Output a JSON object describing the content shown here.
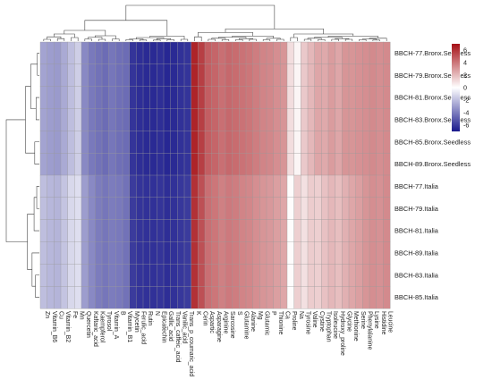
{
  "chart_data": {
    "type": "heatmap",
    "title": "",
    "xlabel": "",
    "ylabel": "",
    "color_scale": {
      "min": -7,
      "max": 7,
      "ticks": [
        "6",
        "4",
        "2",
        "0",
        "-2",
        "-4",
        "-6"
      ],
      "low_color": "#1a1a8c",
      "mid_color": "#ffffff",
      "high_color": "#a50f15"
    },
    "legend_placement": "top-right",
    "grid": true,
    "dendrograms": [
      "rows-left",
      "columns-top"
    ],
    "rows": [
      "BBCH-77.Bronx.Seedless",
      "BBCH-79.Bronx.Seedless",
      "BBCH-81.Bronx.Seedless",
      "BBCH-83.Bronx.Seedless",
      "BBCH-85.Bronx.Seedless",
      "BBCH-89.Bronx.Seedless",
      "BBCH-77.Italia",
      "BBCH-79.Italia",
      "BBCH-81.Italia",
      "BBCH-89.Italia",
      "BBCH-83.Italia",
      "BBCH-85.Italia"
    ],
    "columns": [
      "Zn",
      "Vitamin_B6",
      "Cu",
      "Vitamin_B2",
      "Fe",
      "Mn",
      "Quercetin",
      "Kaftaric_acid",
      "Kaempferol",
      "Tyrosol",
      "Vitamin_A",
      "B",
      "Vitamin_B1",
      "Mycetin",
      "Ferulic_acid",
      "Rutin",
      "N",
      "Epicatechin",
      "Gallic_acid",
      "Trans_caffeic_acid",
      "Vanilic_acid",
      "Trans_p_coumaric_acid",
      "K",
      "Cerin",
      "Aspartic",
      "Asparagine",
      "Arginine",
      "Sarcosine",
      "S",
      "Glutamine",
      "Alanine",
      "Mg",
      "Glutamic",
      "P",
      "Thionine",
      "Ca",
      "Proline",
      "Na",
      "Tyrosine",
      "Valine",
      "Cystine",
      "Tryptophan",
      "Isoleucine",
      "Hydroxy_proline",
      "Glycine",
      "Methionine",
      "Serine",
      "Phenylalanine",
      "Lysine",
      "Histidine",
      "Leucine"
    ],
    "values": [
      [
        -2.8,
        -3.0,
        -3.1,
        -2.6,
        -2.0,
        -1.5,
        -3.6,
        -4.1,
        -4.3,
        -4.5,
        -4.2,
        -4.4,
        -4.5,
        -6.2,
        -6.4,
        -6.5,
        -6.5,
        -6.4,
        -6.6,
        -6.5,
        -6.3,
        -6.2,
        6.4,
        5.6,
        4.7,
        4.5,
        4.2,
        4.4,
        4.3,
        4.1,
        4.0,
        3.8,
        3.6,
        3.5,
        3.3,
        3.1,
        1.0,
        0.3,
        1.6,
        2.1,
        2.6,
        2.5,
        2.9,
        2.6,
        3.1,
        3.1,
        3.2,
        3.3,
        3.4,
        3.3,
        3.4
      ],
      [
        -2.8,
        -3.0,
        -3.1,
        -2.6,
        -2.0,
        -1.5,
        -3.6,
        -4.1,
        -4.3,
        -4.5,
        -4.2,
        -4.4,
        -4.5,
        -6.2,
        -6.4,
        -6.5,
        -6.5,
        -6.4,
        -6.6,
        -6.5,
        -6.3,
        -6.2,
        6.4,
        5.6,
        4.7,
        4.5,
        4.2,
        4.4,
        4.3,
        4.1,
        4.0,
        3.8,
        3.6,
        3.5,
        3.3,
        3.1,
        1.0,
        0.3,
        1.6,
        2.1,
        2.6,
        2.5,
        2.9,
        2.6,
        3.1,
        3.1,
        3.2,
        3.3,
        3.4,
        3.3,
        3.4
      ],
      [
        -2.8,
        -3.0,
        -3.1,
        -2.6,
        -2.0,
        -1.5,
        -3.6,
        -4.1,
        -4.3,
        -4.5,
        -4.2,
        -4.4,
        -4.5,
        -6.2,
        -6.4,
        -6.5,
        -6.5,
        -6.4,
        -6.6,
        -6.5,
        -6.3,
        -6.2,
        6.4,
        5.6,
        4.7,
        4.5,
        4.2,
        4.4,
        4.3,
        4.1,
        4.0,
        3.8,
        3.6,
        3.5,
        3.3,
        3.1,
        1.0,
        0.3,
        1.6,
        2.1,
        2.6,
        2.5,
        2.9,
        2.6,
        3.1,
        3.1,
        3.2,
        3.3,
        3.4,
        3.3,
        3.4
      ],
      [
        -2.8,
        -3.0,
        -3.1,
        -2.6,
        -2.0,
        -1.5,
        -3.6,
        -4.1,
        -4.3,
        -4.5,
        -4.2,
        -4.4,
        -4.5,
        -6.2,
        -6.4,
        -6.5,
        -6.5,
        -6.4,
        -6.6,
        -6.5,
        -6.3,
        -6.2,
        6.4,
        5.6,
        4.7,
        4.5,
        4.2,
        4.4,
        4.3,
        4.1,
        4.0,
        3.8,
        3.6,
        3.5,
        3.3,
        3.1,
        1.0,
        0.3,
        1.6,
        2.1,
        2.6,
        2.5,
        2.9,
        2.6,
        3.1,
        3.1,
        3.2,
        3.3,
        3.4,
        3.3,
        3.4
      ],
      [
        -2.8,
        -3.0,
        -3.1,
        -2.6,
        -2.0,
        -1.5,
        -3.6,
        -4.1,
        -4.3,
        -4.5,
        -4.2,
        -4.4,
        -4.5,
        -6.2,
        -6.4,
        -6.5,
        -6.5,
        -6.4,
        -6.6,
        -6.5,
        -6.3,
        -6.2,
        6.4,
        5.6,
        4.7,
        4.5,
        4.2,
        4.4,
        4.3,
        4.1,
        4.0,
        3.8,
        3.6,
        3.5,
        3.3,
        3.1,
        1.0,
        0.3,
        1.6,
        2.1,
        2.6,
        2.5,
        2.9,
        2.6,
        3.1,
        3.1,
        3.2,
        3.3,
        3.4,
        3.3,
        3.4
      ],
      [
        -2.8,
        -3.0,
        -3.1,
        -2.6,
        -2.0,
        -1.5,
        -3.6,
        -4.1,
        -4.3,
        -4.5,
        -4.2,
        -4.4,
        -4.5,
        -6.2,
        -6.4,
        -6.5,
        -6.5,
        -6.4,
        -6.6,
        -6.5,
        -6.3,
        -6.2,
        6.4,
        5.6,
        4.7,
        4.5,
        4.2,
        4.4,
        4.3,
        4.1,
        4.0,
        3.8,
        3.6,
        3.5,
        3.3,
        3.1,
        1.0,
        0.3,
        1.6,
        2.1,
        2.6,
        2.5,
        2.9,
        2.6,
        3.1,
        3.1,
        3.2,
        3.3,
        3.4,
        3.3,
        3.4
      ],
      [
        -2.0,
        -2.2,
        -2.3,
        -1.8,
        -1.2,
        -1.0,
        -3.0,
        -3.6,
        -4.0,
        -4.2,
        -4.0,
        -4.1,
        -4.3,
        -6.0,
        -6.2,
        -6.3,
        -6.3,
        -6.2,
        -6.4,
        -6.3,
        -6.1,
        -6.0,
        6.0,
        5.1,
        4.2,
        4.0,
        3.7,
        3.9,
        3.8,
        3.6,
        3.5,
        3.3,
        3.1,
        3.0,
        2.8,
        2.6,
        0.1,
        1.4,
        0.9,
        1.5,
        1.4,
        1.8,
        2.1,
        1.9,
        2.3,
        2.6,
        2.8,
        3.1,
        3.3,
        3.2,
        3.4
      ],
      [
        -2.0,
        -2.2,
        -2.3,
        -1.8,
        -1.2,
        -1.0,
        -3.0,
        -3.6,
        -4.0,
        -4.2,
        -4.0,
        -4.1,
        -4.3,
        -6.0,
        -6.2,
        -6.3,
        -6.3,
        -6.2,
        -6.4,
        -6.3,
        -6.1,
        -6.0,
        6.0,
        5.1,
        4.2,
        4.0,
        3.7,
        3.9,
        3.8,
        3.6,
        3.5,
        3.3,
        3.1,
        3.0,
        2.8,
        2.6,
        0.1,
        1.4,
        0.9,
        1.5,
        1.4,
        1.8,
        2.1,
        1.9,
        2.3,
        2.6,
        2.8,
        3.1,
        3.3,
        3.2,
        3.4
      ],
      [
        -2.0,
        -2.2,
        -2.3,
        -1.8,
        -1.2,
        -1.0,
        -3.0,
        -3.6,
        -4.0,
        -4.2,
        -4.0,
        -4.1,
        -4.3,
        -6.0,
        -6.2,
        -6.3,
        -6.3,
        -6.2,
        -6.4,
        -6.3,
        -6.1,
        -6.0,
        6.0,
        5.1,
        4.2,
        4.0,
        3.7,
        3.9,
        3.8,
        3.6,
        3.5,
        3.3,
        3.1,
        3.0,
        2.8,
        2.6,
        0.1,
        1.4,
        0.9,
        1.5,
        1.4,
        1.8,
        2.1,
        1.9,
        2.3,
        2.6,
        2.8,
        3.1,
        3.3,
        3.2,
        3.4
      ],
      [
        -2.0,
        -2.2,
        -2.3,
        -1.8,
        -1.2,
        -1.0,
        -3.0,
        -3.6,
        -4.0,
        -4.2,
        -4.0,
        -4.1,
        -4.3,
        -6.0,
        -6.2,
        -6.3,
        -6.3,
        -6.2,
        -6.4,
        -6.3,
        -6.1,
        -6.0,
        6.0,
        5.1,
        4.2,
        4.0,
        3.7,
        3.9,
        3.8,
        3.6,
        3.5,
        3.3,
        3.1,
        3.0,
        2.8,
        2.6,
        0.1,
        1.4,
        0.9,
        1.5,
        1.4,
        1.8,
        2.1,
        1.9,
        2.3,
        2.6,
        2.8,
        3.1,
        3.3,
        3.2,
        3.4
      ],
      [
        -2.0,
        -2.2,
        -2.3,
        -1.8,
        -1.2,
        -1.0,
        -3.0,
        -3.6,
        -4.0,
        -4.2,
        -4.0,
        -4.1,
        -4.3,
        -6.0,
        -6.2,
        -6.3,
        -6.3,
        -6.2,
        -6.4,
        -6.3,
        -6.1,
        -6.0,
        6.0,
        5.1,
        4.2,
        4.0,
        3.7,
        3.9,
        3.8,
        3.6,
        3.5,
        3.3,
        3.1,
        3.0,
        2.8,
        2.6,
        0.1,
        1.4,
        0.9,
        1.5,
        1.4,
        1.8,
        2.1,
        1.9,
        2.3,
        2.6,
        2.8,
        3.1,
        3.3,
        3.2,
        3.4
      ],
      [
        -2.0,
        -2.2,
        -2.3,
        -1.8,
        -1.2,
        -1.0,
        -3.0,
        -3.6,
        -4.0,
        -4.2,
        -4.0,
        -4.1,
        -4.3,
        -6.0,
        -6.2,
        -6.3,
        -6.3,
        -6.2,
        -6.4,
        -6.3,
        -6.1,
        -6.0,
        6.0,
        5.1,
        4.2,
        4.0,
        3.7,
        3.9,
        3.8,
        3.6,
        3.5,
        3.3,
        3.1,
        3.0,
        2.8,
        2.6,
        0.1,
        1.4,
        0.9,
        1.5,
        1.4,
        1.8,
        2.1,
        1.9,
        2.3,
        2.6,
        2.8,
        3.1,
        3.3,
        3.2,
        3.4
      ]
    ],
    "row_dendrogram": {
      "order": [
        0,
        1,
        2,
        3,
        4,
        5,
        6,
        7,
        8,
        9,
        10,
        11
      ],
      "merges": [
        [
          0,
          1,
          0.06
        ],
        [
          2,
          3,
          0.1
        ],
        [
          4,
          5,
          0.14
        ],
        [
          12,
          13,
          0.26
        ],
        [
          14,
          15,
          0.42
        ],
        [
          6,
          7,
          0.08
        ],
        [
          10,
          11,
          0.12
        ],
        [
          8,
          17,
          0.16
        ],
        [
          9,
          18,
          0.22
        ],
        [
          19,
          20,
          0.36
        ],
        [
          16,
          21,
          1.0
        ]
      ]
    },
    "column_dendrogram": {
      "order": [
        0,
        1,
        2,
        3,
        4,
        5,
        6,
        7,
        8,
        9,
        10,
        11,
        12,
        13,
        14,
        15,
        16,
        17,
        18,
        19,
        20,
        21,
        22,
        23,
        24,
        25,
        26,
        27,
        28,
        29,
        30,
        31,
        32,
        33,
        34,
        35,
        36,
        37,
        38,
        39,
        40,
        41,
        42,
        43,
        44,
        45,
        46,
        47,
        48,
        49,
        50
      ],
      "merges": [
        [
          0,
          1,
          0.05
        ],
        [
          2,
          3,
          0.07
        ],
        [
          51,
          52,
          0.12
        ],
        [
          4,
          5,
          0.1
        ],
        [
          53,
          54,
          0.2
        ],
        [
          6,
          7,
          0.06
        ],
        [
          8,
          9,
          0.05
        ],
        [
          56,
          57,
          0.11
        ],
        [
          10,
          11,
          0.06
        ],
        [
          58,
          59,
          0.15
        ],
        [
          55,
          60,
          0.3
        ],
        [
          12,
          13,
          0.04
        ],
        [
          14,
          15,
          0.03
        ],
        [
          62,
          63,
          0.06
        ],
        [
          16,
          17,
          0.03
        ],
        [
          18,
          19,
          0.04
        ],
        [
          65,
          66,
          0.07
        ],
        [
          64,
          67,
          0.1
        ],
        [
          20,
          21,
          0.05
        ],
        [
          68,
          69,
          0.14
        ],
        [
          61,
          70,
          0.58
        ],
        [
          22,
          23,
          0.12
        ],
        [
          24,
          25,
          0.05
        ],
        [
          26,
          27,
          0.04
        ],
        [
          73,
          74,
          0.08
        ],
        [
          28,
          29,
          0.04
        ],
        [
          30,
          31,
          0.05
        ],
        [
          76,
          77,
          0.07
        ],
        [
          75,
          78,
          0.11
        ],
        [
          32,
          33,
          0.04
        ],
        [
          34,
          35,
          0.05
        ],
        [
          80,
          81,
          0.08
        ],
        [
          79,
          82,
          0.14
        ],
        [
          72,
          83,
          0.24
        ],
        [
          36,
          37,
          0.1
        ],
        [
          38,
          39,
          0.05
        ],
        [
          40,
          41,
          0.04
        ],
        [
          86,
          87,
          0.08
        ],
        [
          42,
          43,
          0.05
        ],
        [
          44,
          45,
          0.05
        ],
        [
          89,
          90,
          0.07
        ],
        [
          88,
          91,
          0.11
        ],
        [
          46,
          47,
          0.04
        ],
        [
          48,
          49,
          0.03
        ],
        [
          93,
          94,
          0.06
        ],
        [
          95,
          50,
          0.08
        ],
        [
          92,
          96,
          0.14
        ],
        [
          85,
          97,
          0.2
        ],
        [
          84,
          98,
          0.34
        ],
        [
          71,
          99,
          1.0
        ]
      ]
    }
  }
}
